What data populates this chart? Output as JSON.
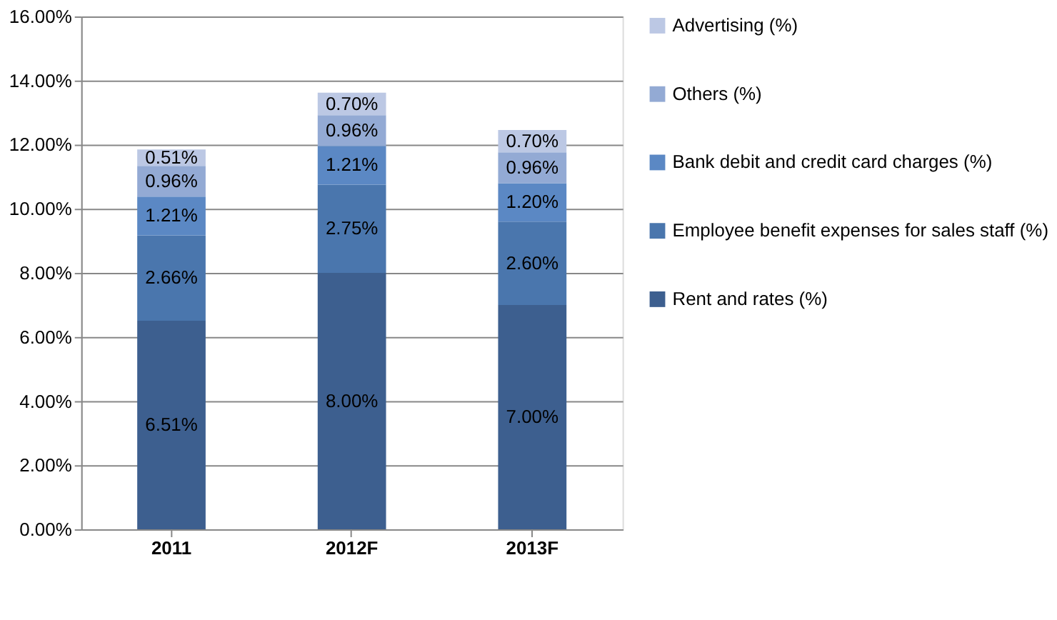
{
  "chart_data": {
    "type": "bar",
    "stacked": true,
    "categories": [
      "2011",
      "2012F",
      "2013F"
    ],
    "series": [
      {
        "name": "Rent and rates (%)",
        "color": "#3d5f8f",
        "values": [
          6.51,
          8.0,
          7.0
        ],
        "value_labels": [
          "6.51%",
          "8.00%",
          "7.00%"
        ]
      },
      {
        "name": "Employee benefit expenses for sales staff (%)",
        "color": "#4a76ad",
        "values": [
          2.66,
          2.75,
          2.6
        ],
        "value_labels": [
          "2.66%",
          "2.75%",
          "2.60%"
        ]
      },
      {
        "name": "Bank debit and credit card charges (%)",
        "color": "#5b88c4",
        "values": [
          1.21,
          1.21,
          1.2
        ],
        "value_labels": [
          "1.21%",
          "1.21%",
          "1.20%"
        ]
      },
      {
        "name": "Others (%)",
        "color": "#93aad4",
        "values": [
          0.96,
          0.96,
          0.96
        ],
        "value_labels": [
          "0.96%",
          "0.96%",
          "0.96%"
        ]
      },
      {
        "name": "Advertising (%)",
        "color": "#bcc8e4",
        "values": [
          0.51,
          0.7,
          0.7
        ],
        "value_labels": [
          "0.51%",
          "0.70%",
          "0.70%"
        ]
      }
    ],
    "ylim": [
      0,
      16
    ],
    "yticks": [
      {
        "value": 0,
        "label": "0.00%"
      },
      {
        "value": 2,
        "label": "2.00%"
      },
      {
        "value": 4,
        "label": "4.00%"
      },
      {
        "value": 6,
        "label": "6.00%"
      },
      {
        "value": 8,
        "label": "8.00%"
      },
      {
        "value": 10,
        "label": "10.00%"
      },
      {
        "value": 12,
        "label": "12.00%"
      },
      {
        "value": 14,
        "label": "14.00%"
      },
      {
        "value": 16,
        "label": "16.00%"
      }
    ],
    "grid": "y",
    "legend": "right"
  }
}
